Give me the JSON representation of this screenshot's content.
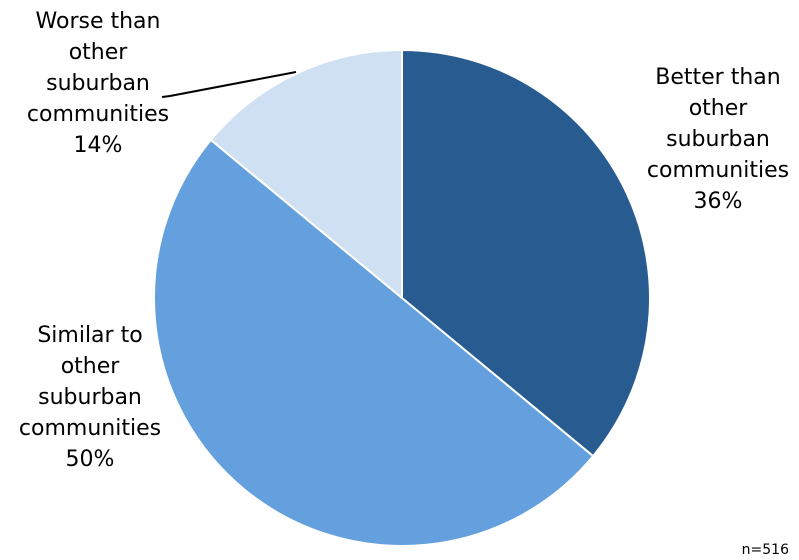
{
  "chart_data": {
    "type": "pie",
    "start_angle_deg": 0,
    "direction": "clockwise",
    "slices": [
      {
        "label": "Better than other suburban communities",
        "label_lines": [
          "Better than",
          "other",
          "suburban",
          "communities"
        ],
        "value": 36,
        "value_label": "36%",
        "color": "#285C91"
      },
      {
        "label": "Similar to other suburban communities",
        "label_lines": [
          "Similar to",
          "other",
          "suburban",
          "communities"
        ],
        "value": 50,
        "value_label": "50%",
        "color": "#63A0DD"
      },
      {
        "label": "Worse than other suburban communities",
        "label_lines": [
          "Worse than",
          "other",
          "suburban",
          "communities"
        ],
        "value": 14,
        "value_label": "14%",
        "color": "#CFE0F3"
      }
    ],
    "note": "n=516"
  }
}
